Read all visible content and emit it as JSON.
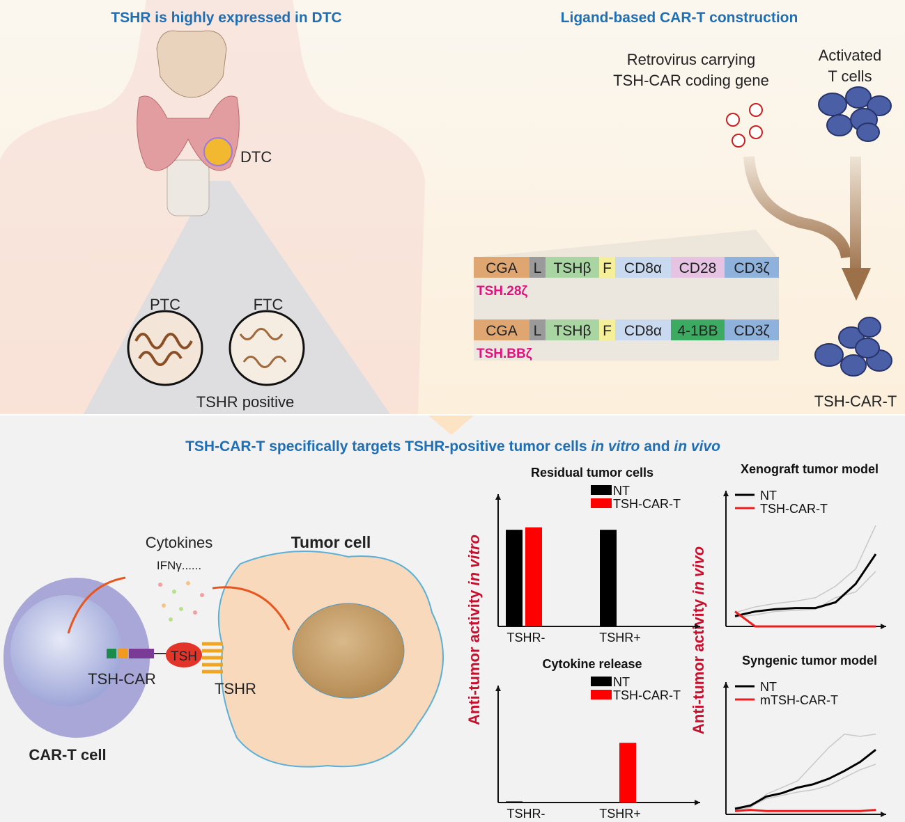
{
  "top_left": {
    "title": "TSHR is highly expressed in DTC",
    "dtc_label": "DTC",
    "ptc_label": "PTC",
    "ftc_label": "FTC",
    "tshr_positive": "TSHR positive"
  },
  "top_right": {
    "title": "Ligand-based CAR-T construction",
    "retrovirus_lines": [
      "Retrovirus carrying",
      "TSH-CAR coding gene"
    ],
    "activated_lines": [
      "Activated",
      "T cells"
    ],
    "constructs": [
      {
        "name": "TSH.28ζ",
        "segments": [
          {
            "label": "CGA",
            "color": "#dfa672"
          },
          {
            "label": "L",
            "color": "#9a9a9a"
          },
          {
            "label": "TSHβ",
            "color": "#a8d5a2"
          },
          {
            "label": "F",
            "color": "#f5ef9a"
          },
          {
            "label": "CD8α",
            "color": "#c9daf0"
          },
          {
            "label": "CD28",
            "color": "#e6c3e3"
          },
          {
            "label": "CD3ζ",
            "color": "#8fb2dc"
          }
        ]
      },
      {
        "name": "TSH.BBζ",
        "segments": [
          {
            "label": "CGA",
            "color": "#dfa672"
          },
          {
            "label": "L",
            "color": "#9a9a9a"
          },
          {
            "label": "TSHβ",
            "color": "#a8d5a2"
          },
          {
            "label": "F",
            "color": "#f5ef9a"
          },
          {
            "label": "CD8α",
            "color": "#c9daf0"
          },
          {
            "label": "4-1BB",
            "color": "#3daa62"
          },
          {
            "label": "CD3ζ",
            "color": "#8fb2dc"
          }
        ]
      }
    ],
    "product": "TSH-CAR-T"
  },
  "bottom": {
    "title_parts": [
      "TSH-CAR-T specifically targets TSHR-positive tumor cells ",
      "in vitro",
      " and ",
      "in vivo"
    ],
    "cytokines": "Cytokines",
    "ifn": "IFNγ......",
    "tumor_cell": "Tumor cell",
    "tsh": "TSH",
    "tsh_car": "TSH-CAR",
    "tshr": "TSHR",
    "car_t_cell": "CAR-T cell"
  },
  "in_vitro": {
    "y_label_parts": [
      "Anti-tumor activity ",
      "in vitro"
    ],
    "charts": [
      {
        "type": "bar",
        "title": "Residual tumor cells",
        "categories": [
          "TSHR-",
          "TSHR+"
        ],
        "ylim": [
          0,
          100
        ],
        "series": [
          {
            "name": "NT",
            "color": "#000000",
            "values": [
              78,
              78
            ]
          },
          {
            "name": "TSH-CAR-T",
            "color": "#ff0000",
            "values": [
              80,
              0
            ]
          }
        ]
      },
      {
        "type": "bar",
        "title": "Cytokine release",
        "categories": [
          "TSHR-",
          "TSHR+"
        ],
        "ylim": [
          0,
          100
        ],
        "series": [
          {
            "name": "NT",
            "color": "#000000",
            "values": [
              1,
              0
            ]
          },
          {
            "name": "TSH-CAR-T",
            "color": "#ff0000",
            "values": [
              0,
              55
            ]
          }
        ]
      }
    ]
  },
  "in_vivo": {
    "y_label_parts": [
      "Anti-tumor activity ",
      "in vivo"
    ],
    "charts": [
      {
        "type": "line",
        "title": "Xenograft tumor model",
        "categories": [
          null,
          null,
          null,
          null,
          null,
          null,
          null,
          null
        ],
        "ylim": [
          0,
          100
        ],
        "series": [
          {
            "color": "#c8c8c8",
            "values": [
              12,
              17,
              20,
              22,
              25,
              35,
              50,
              88
            ]
          },
          {
            "color": "#c8c8c8",
            "values": [
              8,
              10,
              13,
              14,
              15,
              25,
              30,
              48
            ]
          },
          {
            "name": "NT",
            "color": "#000000",
            "values": [
              9,
              13,
              15,
              16,
              16,
              21,
              37,
              63
            ]
          },
          {
            "name": "TSH-CAR-T",
            "color": "#ee1c1c",
            "values": [
              13,
              0,
              0,
              0,
              0,
              0,
              0,
              0
            ]
          }
        ]
      },
      {
        "type": "line",
        "title": "Syngenic tumor model",
        "categories": [
          null,
          null,
          null,
          null,
          null,
          null,
          null,
          null,
          null,
          null
        ],
        "ylim": [
          0,
          100
        ],
        "series": [
          {
            "color": "#c8c8c8",
            "values": [
              4,
              6,
              18,
              24,
              30,
              45,
              60,
              72,
              70,
              72
            ]
          },
          {
            "color": "#c8c8c8",
            "values": [
              6,
              7,
              14,
              17,
              20,
              22,
              26,
              33,
              40,
              45
            ]
          },
          {
            "name": "NT",
            "color": "#000000",
            "values": [
              5,
              8,
              16,
              19,
              24,
              27,
              32,
              39,
              47,
              58
            ]
          },
          {
            "name": "mTSH-CAR-T",
            "color": "#ee1c1c",
            "values": [
              3,
              4,
              3,
              3,
              3,
              3,
              3,
              3,
              3,
              4
            ]
          }
        ]
      }
    ]
  }
}
